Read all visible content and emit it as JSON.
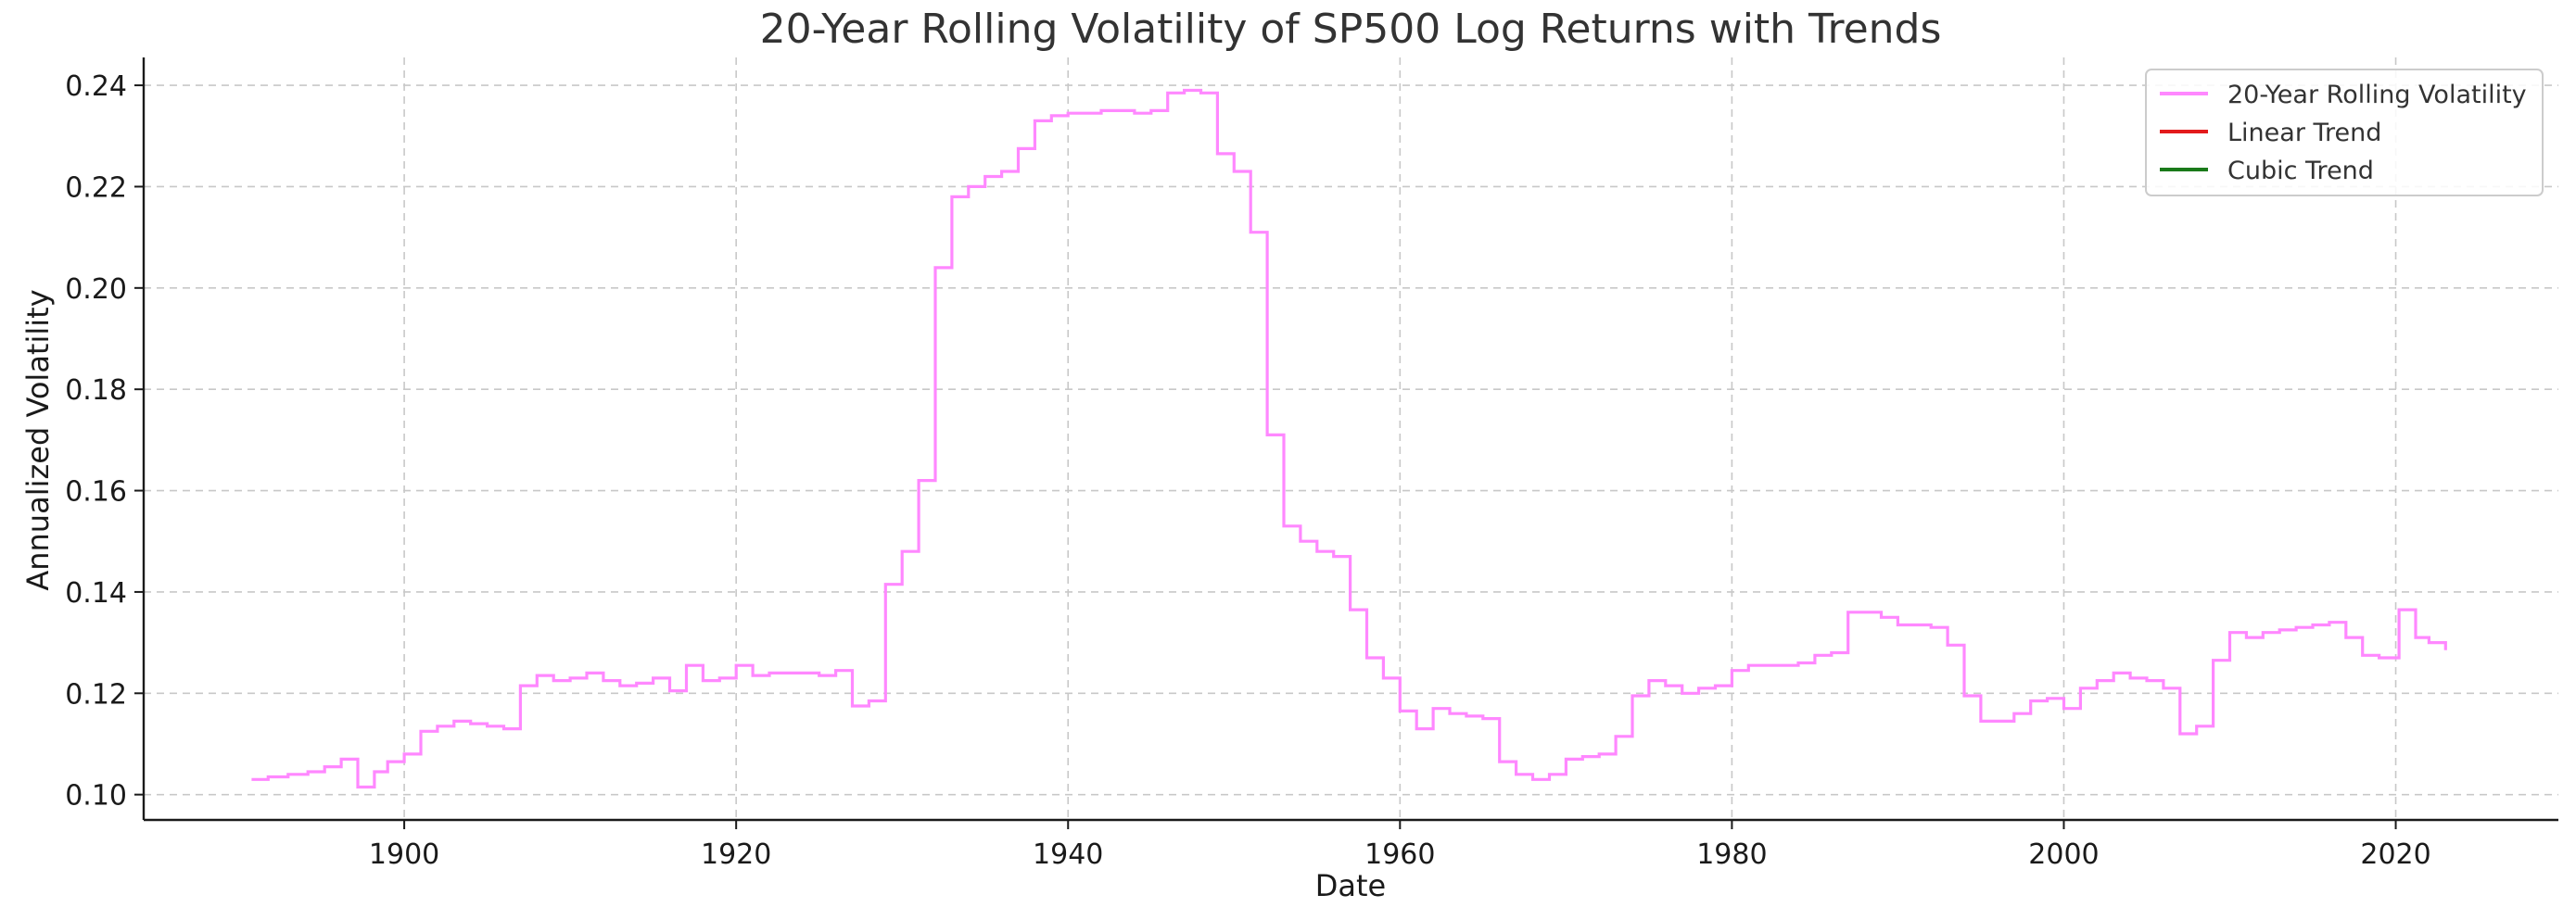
{
  "chart_data": {
    "type": "line",
    "title": "20-Year Rolling Volatility of SP500 Log Returns with Trends",
    "xlabel": "Date",
    "ylabel": "Annualized Volatility",
    "xlim": [
      1884.3,
      2029.8
    ],
    "ylim": [
      0.095,
      0.2455
    ],
    "x_ticks": [
      1900,
      1920,
      1940,
      1960,
      1980,
      2000,
      2020
    ],
    "x_tick_labels": [
      "1900",
      "1920",
      "1940",
      "1960",
      "1980",
      "2000",
      "2020"
    ],
    "y_ticks": [
      0.1,
      0.12,
      0.14,
      0.16,
      0.18,
      0.2,
      0.22,
      0.24
    ],
    "y_tick_labels": [
      "0.10",
      "0.12",
      "0.14",
      "0.16",
      "0.18",
      "0.20",
      "0.22",
      "0.24"
    ],
    "grid": true,
    "legend_position": "top-right",
    "legend": [
      {
        "label": "20-Year Rolling Volatility",
        "color": "#ff88ff"
      },
      {
        "label": "Linear Trend",
        "color": "#e31a1c"
      },
      {
        "label": "Cubic Trend",
        "color": "#1a7a1a"
      }
    ],
    "series": [
      {
        "name": "20-Year Rolling Volatility",
        "color": "#ff88ff",
        "step": true,
        "points": [
          [
            1890.8,
            0.103
          ],
          [
            1891.8,
            0.1035
          ],
          [
            1893.0,
            0.104
          ],
          [
            1894.2,
            0.1045
          ],
          [
            1895.2,
            0.1055
          ],
          [
            1896.2,
            0.107
          ],
          [
            1897.2,
            0.1015
          ],
          [
            1898.2,
            0.1045
          ],
          [
            1899.0,
            0.1065
          ],
          [
            1900.0,
            0.108
          ],
          [
            1901.0,
            0.1125
          ],
          [
            1902.0,
            0.1135
          ],
          [
            1903.0,
            0.1145
          ],
          [
            1904.0,
            0.114
          ],
          [
            1905.0,
            0.1135
          ],
          [
            1906.0,
            0.113
          ],
          [
            1907.0,
            0.1215
          ],
          [
            1908.0,
            0.1235
          ],
          [
            1909.0,
            0.1225
          ],
          [
            1910.0,
            0.123
          ],
          [
            1911.0,
            0.124
          ],
          [
            1912.0,
            0.1225
          ],
          [
            1913.0,
            0.1215
          ],
          [
            1914.0,
            0.122
          ],
          [
            1915.0,
            0.123
          ],
          [
            1916.0,
            0.1205
          ],
          [
            1917.0,
            0.1255
          ],
          [
            1918.0,
            0.1225
          ],
          [
            1919.0,
            0.123
          ],
          [
            1920.0,
            0.1255
          ],
          [
            1921.0,
            0.1235
          ],
          [
            1922.0,
            0.124
          ],
          [
            1923.0,
            0.124
          ],
          [
            1924.0,
            0.124
          ],
          [
            1925.0,
            0.1235
          ],
          [
            1926.0,
            0.1245
          ],
          [
            1927.0,
            0.1175
          ],
          [
            1928.0,
            0.1185
          ],
          [
            1929.0,
            0.1415
          ],
          [
            1930.0,
            0.148
          ],
          [
            1931.0,
            0.162
          ],
          [
            1932.0,
            0.204
          ],
          [
            1933.0,
            0.218
          ],
          [
            1934.0,
            0.22
          ],
          [
            1935.0,
            0.222
          ],
          [
            1936.0,
            0.223
          ],
          [
            1937.0,
            0.2275
          ],
          [
            1938.0,
            0.233
          ],
          [
            1939.0,
            0.234
          ],
          [
            1940.0,
            0.2345
          ],
          [
            1941.0,
            0.2345
          ],
          [
            1942.0,
            0.235
          ],
          [
            1943.0,
            0.235
          ],
          [
            1944.0,
            0.2345
          ],
          [
            1945.0,
            0.235
          ],
          [
            1946.0,
            0.2385
          ],
          [
            1947.0,
            0.239
          ],
          [
            1948.0,
            0.2385
          ],
          [
            1949.0,
            0.2265
          ],
          [
            1950.0,
            0.223
          ],
          [
            1951.0,
            0.211
          ],
          [
            1952.0,
            0.171
          ],
          [
            1953.0,
            0.153
          ],
          [
            1954.0,
            0.15
          ],
          [
            1955.0,
            0.148
          ],
          [
            1956.0,
            0.147
          ],
          [
            1957.0,
            0.1365
          ],
          [
            1958.0,
            0.127
          ],
          [
            1959.0,
            0.123
          ],
          [
            1960.0,
            0.1165
          ],
          [
            1961.0,
            0.113
          ],
          [
            1962.0,
            0.117
          ],
          [
            1963.0,
            0.116
          ],
          [
            1964.0,
            0.1155
          ],
          [
            1965.0,
            0.115
          ],
          [
            1966.0,
            0.1065
          ],
          [
            1967.0,
            0.104
          ],
          [
            1968.0,
            0.103
          ],
          [
            1969.0,
            0.104
          ],
          [
            1970.0,
            0.107
          ],
          [
            1971.0,
            0.1075
          ],
          [
            1972.0,
            0.108
          ],
          [
            1973.0,
            0.1115
          ],
          [
            1974.0,
            0.1195
          ],
          [
            1975.0,
            0.1225
          ],
          [
            1976.0,
            0.1215
          ],
          [
            1977.0,
            0.12
          ],
          [
            1978.0,
            0.121
          ],
          [
            1979.0,
            0.1215
          ],
          [
            1980.0,
            0.1245
          ],
          [
            1981.0,
            0.1255
          ],
          [
            1982.0,
            0.1255
          ],
          [
            1983.0,
            0.1255
          ],
          [
            1984.0,
            0.126
          ],
          [
            1985.0,
            0.1275
          ],
          [
            1986.0,
            0.128
          ],
          [
            1987.0,
            0.136
          ],
          [
            1988.0,
            0.136
          ],
          [
            1989.0,
            0.135
          ],
          [
            1990.0,
            0.1335
          ],
          [
            1991.0,
            0.1335
          ],
          [
            1992.0,
            0.133
          ],
          [
            1993.0,
            0.1295
          ],
          [
            1994.0,
            0.1195
          ],
          [
            1995.0,
            0.1145
          ],
          [
            1996.0,
            0.1145
          ],
          [
            1997.0,
            0.116
          ],
          [
            1998.0,
            0.1185
          ],
          [
            1999.0,
            0.119
          ],
          [
            2000.0,
            0.117
          ],
          [
            2001.0,
            0.121
          ],
          [
            2002.0,
            0.1225
          ],
          [
            2003.0,
            0.124
          ],
          [
            2004.0,
            0.123
          ],
          [
            2005.0,
            0.1225
          ],
          [
            2006.0,
            0.121
          ],
          [
            2007.0,
            0.112
          ],
          [
            2008.0,
            0.1135
          ],
          [
            2009.0,
            0.1265
          ],
          [
            2010.0,
            0.132
          ],
          [
            2011.0,
            0.131
          ],
          [
            2012.0,
            0.132
          ],
          [
            2013.0,
            0.1325
          ],
          [
            2014.0,
            0.133
          ],
          [
            2015.0,
            0.1335
          ],
          [
            2016.0,
            0.134
          ],
          [
            2017.0,
            0.131
          ],
          [
            2018.0,
            0.1275
          ],
          [
            2019.0,
            0.127
          ],
          [
            2020.2,
            0.1365
          ],
          [
            2021.2,
            0.131
          ],
          [
            2022.0,
            0.13
          ],
          [
            2023.0,
            0.1285
          ]
        ]
      },
      {
        "name": "Linear Trend",
        "color": "#e31a1c",
        "points": []
      },
      {
        "name": "Cubic Trend",
        "color": "#1a7a1a",
        "points": []
      }
    ]
  }
}
